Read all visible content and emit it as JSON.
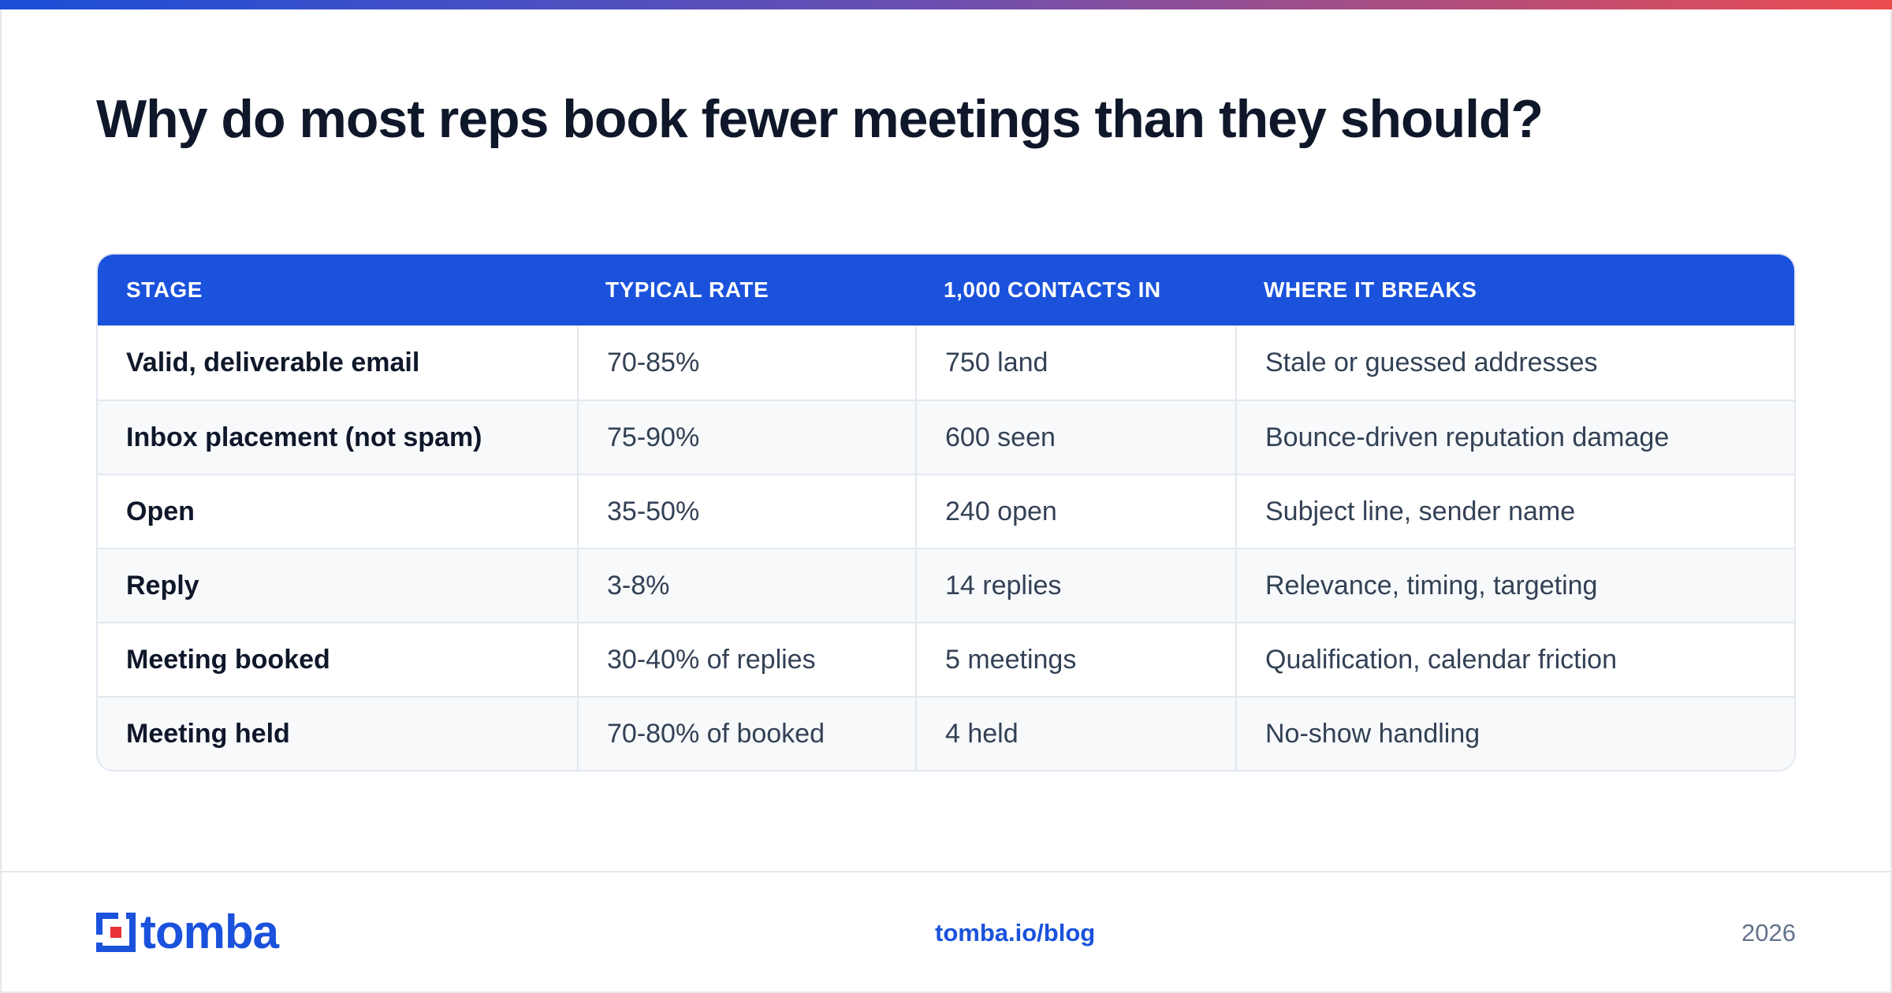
{
  "title": "Why do most reps book fewer meetings than they should?",
  "colors": {
    "accent": "#1a52dc",
    "gradient_end": "#ec4c4f"
  },
  "table": {
    "headers": [
      "STAGE",
      "TYPICAL RATE",
      "1,000 CONTACTS IN",
      "WHERE IT BREAKS"
    ],
    "rows": [
      [
        "Valid, deliverable email",
        "70-85%",
        "750 land",
        "Stale or guessed addresses"
      ],
      [
        "Inbox placement (not spam)",
        "75-90%",
        "600 seen",
        "Bounce-driven reputation damage"
      ],
      [
        "Open",
        "35-50%",
        "240 open",
        "Subject line, sender name"
      ],
      [
        "Reply",
        "3-8%",
        "14 replies",
        "Relevance, timing, targeting"
      ],
      [
        "Meeting booked",
        "30-40% of replies",
        "5 meetings",
        "Qualification, calendar friction"
      ],
      [
        "Meeting held",
        "70-80% of booked",
        "4 held",
        "No-show handling"
      ]
    ]
  },
  "footer": {
    "logo_text": "tomba",
    "logo_icon": "tomba-logo-icon",
    "link": "tomba.io/blog",
    "year": "2026"
  }
}
